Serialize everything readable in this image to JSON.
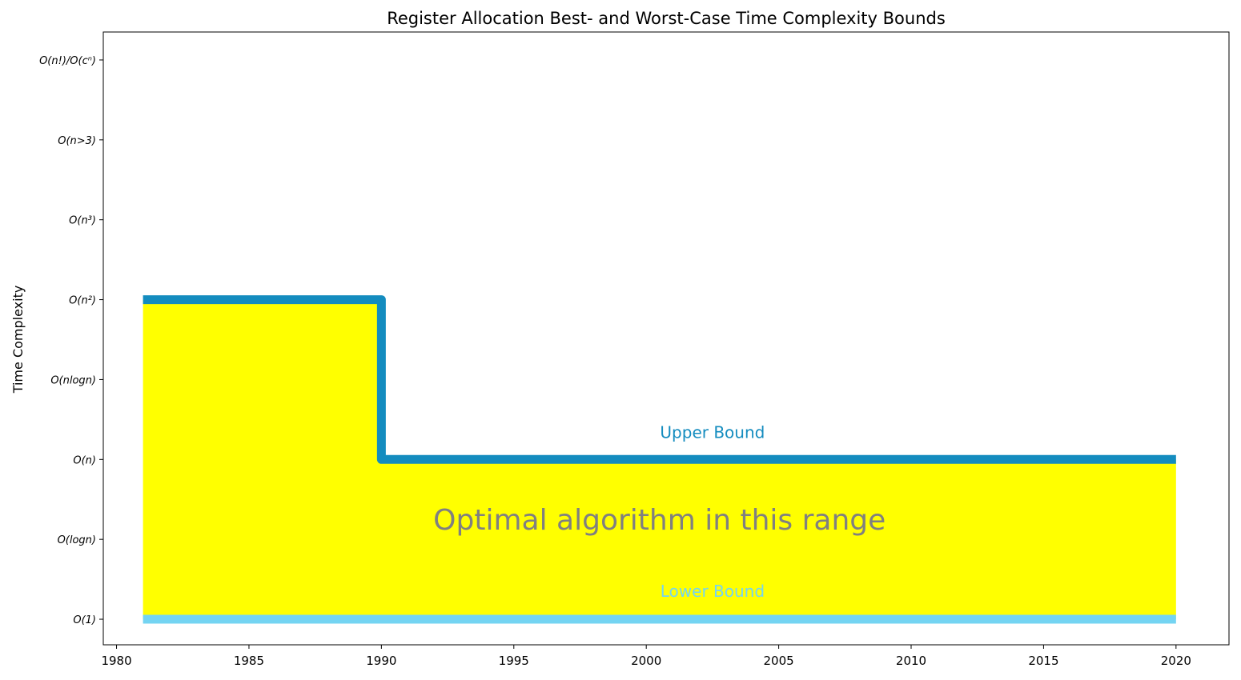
{
  "chart_data": {
    "type": "area",
    "title": "Register Allocation Best- and Worst-Case Time Complexity Bounds",
    "xlabel": "",
    "ylabel": "Time Complexity",
    "xlim": [
      1979.5,
      2022
    ],
    "ylim": [
      -0.32,
      7.35
    ],
    "xticks": [
      1980,
      1985,
      1990,
      1995,
      2000,
      2005,
      2010,
      2015,
      2020
    ],
    "yticks": [
      {
        "value": 0,
        "label": "O(1)"
      },
      {
        "value": 1,
        "label": "O(logn)"
      },
      {
        "value": 2,
        "label": "O(n)"
      },
      {
        "value": 3,
        "label": "O(nlogn)"
      },
      {
        "value": 4,
        "label": "O(n²)"
      },
      {
        "value": 5,
        "label": "O(n³)"
      },
      {
        "value": 6,
        "label": "O(n>3)"
      },
      {
        "value": 7,
        "label": "O(n!)/O(cⁿ)"
      }
    ],
    "series": [
      {
        "name": "Upper Bound",
        "color": "#148cbf",
        "step_points": [
          [
            1981,
            4
          ],
          [
            1990,
            4
          ],
          [
            1990,
            2
          ],
          [
            2020,
            2
          ]
        ]
      },
      {
        "name": "Lower Bound",
        "color": "#74d4f2",
        "step_points": [
          [
            1981,
            0
          ],
          [
            2020,
            0
          ]
        ]
      }
    ],
    "fill": {
      "color": "#ffff00",
      "x_start": 1981,
      "x_end": 2020
    },
    "annotations": [
      {
        "text": "Upper Bound",
        "x": 2002.5,
        "y": 2.27,
        "color": "#148cbf"
      },
      {
        "text": "Lower Bound",
        "x": 2002.5,
        "y": 0.28,
        "color": "#74d4f2"
      },
      {
        "text": "Optimal algorithm in this range",
        "x": 2000.5,
        "y": 1.12,
        "color": "#808080"
      }
    ]
  }
}
